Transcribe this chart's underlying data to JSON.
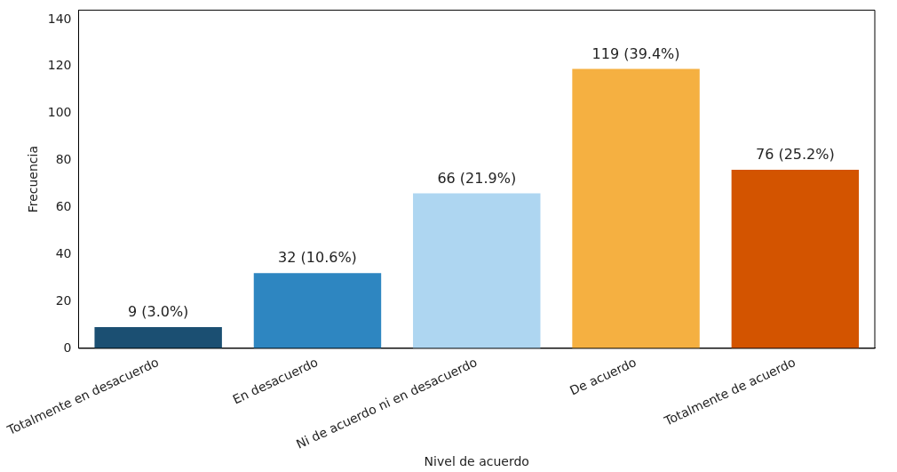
{
  "chart_data": {
    "type": "bar",
    "xlabel": "Nivel de acuerdo",
    "ylabel": "Frecuencia",
    "categories": [
      "Totalmente en desacuerdo",
      "En desacuerdo",
      "Ni de acuerdo ni en desacuerdo",
      "De acuerdo",
      "Totalmente de acuerdo"
    ],
    "values": [
      9,
      32,
      66,
      119,
      76
    ],
    "colors": [
      "#1b4f72",
      "#2e86c1",
      "#aed6f1",
      "#f5b041",
      "#d35400"
    ],
    "value_labels": [
      "9 (3.0%)",
      "32 (10.6%)",
      "66 (21.9%)",
      "119 (39.4%)",
      "76 (25.2%)"
    ],
    "ylim": [
      0,
      144
    ],
    "yticks": [
      0,
      20,
      40,
      60,
      80,
      100,
      120,
      140
    ]
  }
}
